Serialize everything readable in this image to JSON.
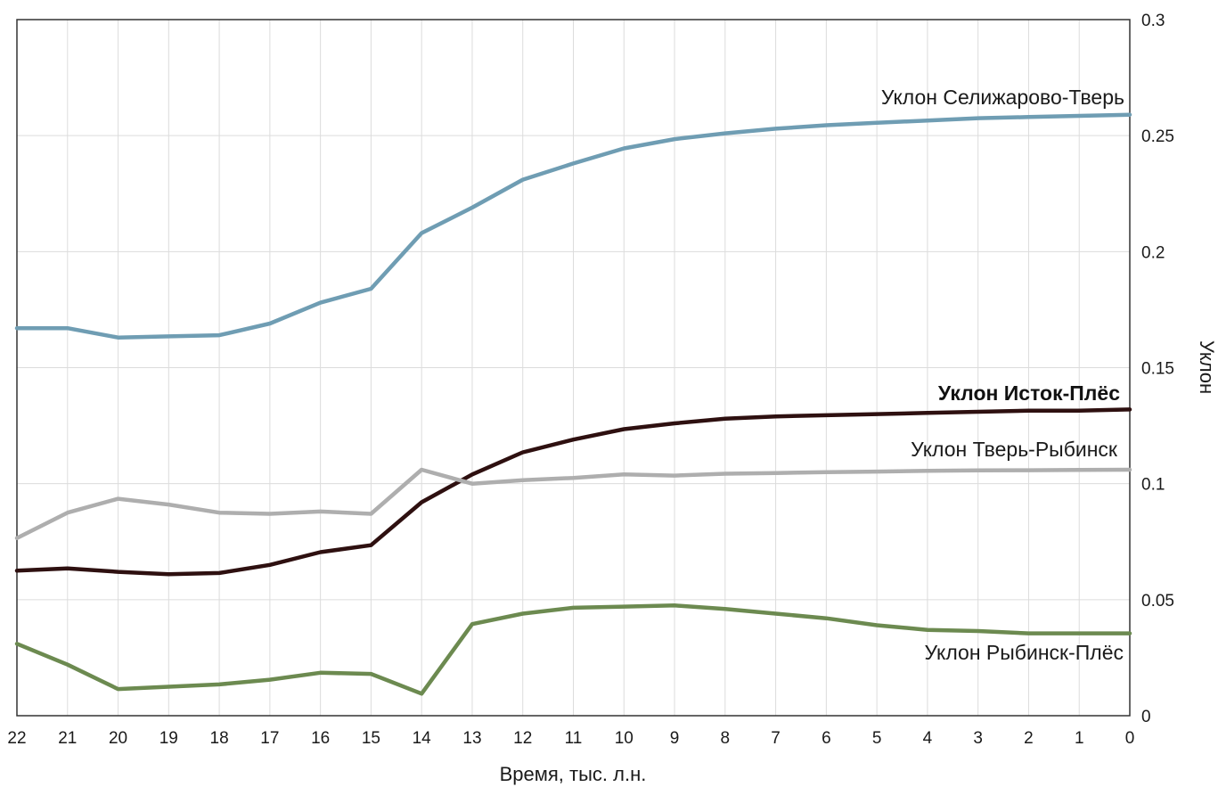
{
  "chart_data": {
    "type": "line",
    "xlabel": "Время, тыс. л.н.",
    "ylabel": "Уклон",
    "x": [
      22,
      21,
      20,
      19,
      18,
      17,
      16,
      15,
      14,
      13,
      12,
      11,
      10,
      9,
      8,
      7,
      6,
      5,
      4,
      3,
      2,
      1,
      0
    ],
    "x_ticks": [
      "22",
      "21",
      "20",
      "19",
      "18",
      "17",
      "16",
      "15",
      "14",
      "13",
      "12",
      "11",
      "10",
      "9",
      "8",
      "7",
      "6",
      "5",
      "4",
      "3",
      "2",
      "1",
      "0"
    ],
    "xlim": [
      22,
      0
    ],
    "ylim": [
      0,
      0.3
    ],
    "y_ticks": [
      "0",
      "0.05",
      "0.1",
      "0.15",
      "0.2",
      "0.25",
      "0.3"
    ],
    "y_tick_values": [
      0,
      0.05,
      0.1,
      0.15,
      0.2,
      0.25,
      0.3
    ],
    "y_axis_side": "right",
    "grid": true,
    "series": [
      {
        "name": "Уклон Селижарово-Тверь",
        "color": "#6f9db3",
        "values": [
          0.167,
          0.167,
          0.163,
          0.1635,
          0.164,
          0.169,
          0.178,
          0.184,
          0.208,
          0.219,
          0.231,
          0.238,
          0.2445,
          0.2485,
          0.251,
          0.253,
          0.2545,
          0.2555,
          0.2565,
          0.2575,
          0.258,
          0.2585,
          0.259
        ]
      },
      {
        "name": "Уклон Исток-Плёс",
        "color": "#2e1010",
        "bold": true,
        "values": [
          0.0625,
          0.0635,
          0.062,
          0.061,
          0.0615,
          0.065,
          0.0705,
          0.0735,
          0.092,
          0.104,
          0.1135,
          0.119,
          0.1235,
          0.126,
          0.128,
          0.129,
          0.1295,
          0.13,
          0.1305,
          0.131,
          0.1315,
          0.1315,
          0.132
        ]
      },
      {
        "name": "Уклон Тверь-Рыбинск",
        "color": "#aeaeae",
        "values": [
          0.0765,
          0.0875,
          0.0935,
          0.091,
          0.0875,
          0.087,
          0.088,
          0.087,
          0.106,
          0.1,
          0.1015,
          0.1025,
          0.104,
          0.1035,
          0.1043,
          0.1046,
          0.105,
          0.1052,
          0.1055,
          0.1057,
          0.1058,
          0.1059,
          0.106
        ]
      },
      {
        "name": "Уклон Рыбинск-Плёс",
        "color": "#6c8a50",
        "values": [
          0.031,
          0.022,
          0.0115,
          0.0125,
          0.0135,
          0.0155,
          0.0185,
          0.018,
          0.0095,
          0.0395,
          0.044,
          0.0465,
          0.047,
          0.0475,
          0.046,
          0.044,
          0.042,
          0.039,
          0.037,
          0.0365,
          0.0355,
          0.0355,
          0.0355
        ]
      }
    ]
  }
}
